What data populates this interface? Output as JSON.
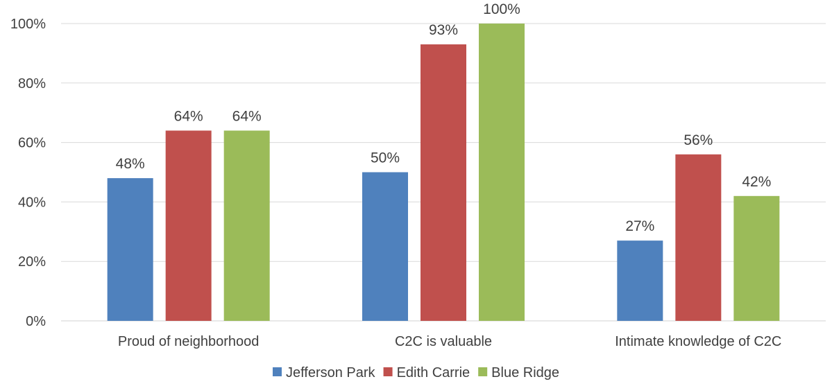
{
  "chart_data": {
    "type": "bar",
    "title": "",
    "xlabel": "",
    "ylabel": "",
    "categories": [
      "Proud of neighborhood",
      "C2C is valuable",
      "Intimate knowledge of C2C"
    ],
    "series": [
      {
        "name": "Jefferson Park",
        "values": [
          48,
          50,
          27
        ],
        "labels": [
          "48%",
          "50%",
          "27%"
        ],
        "color": "#4f81bd"
      },
      {
        "name": "Edith Carrie",
        "values": [
          64,
          93,
          56
        ],
        "labels": [
          "64%",
          "93%",
          "56%"
        ],
        "color": "#c0504d"
      },
      {
        "name": "Blue Ridge",
        "values": [
          64,
          100,
          42
        ],
        "labels": [
          "64%",
          "100%",
          "42%"
        ],
        "color": "#9bbb59"
      }
    ],
    "ylim": [
      0,
      100
    ],
    "yticks": [
      "0%",
      "20%",
      "40%",
      "60%",
      "80%",
      "100%"
    ],
    "grid": true,
    "legend_position": "bottom"
  }
}
